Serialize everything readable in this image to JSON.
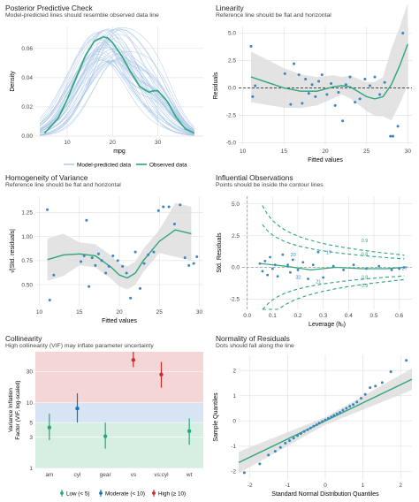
{
  "colors": {
    "green": "#2ca57a",
    "blue": "#1f6fb4",
    "red": "#c42c2c",
    "lightblue": "#a9c5e6",
    "dot": "#3b84bd",
    "grid": "#e3e3e3",
    "band": "#dcdcdc"
  },
  "chart_data": [
    {
      "type": "line",
      "title": "Posterior Predictive Check",
      "subtitle": "Model-predicted lines should resemble observed data line",
      "xlabel": "mpg",
      "ylabel": "Density",
      "xlim": [
        3,
        40
      ],
      "ylim": [
        0,
        0.075
      ],
      "xticks": [
        10,
        20,
        30
      ],
      "yticks": [
        0,
        0.02,
        0.04,
        0.06
      ],
      "ytick_labels": [
        "0.00",
        "0.02",
        "0.04",
        "0.06"
      ],
      "legend": [
        "Model-predicted data",
        "Observed data"
      ],
      "legend_position": "bottom",
      "observed": {
        "x": [
          5,
          8,
          10,
          12,
          14,
          16,
          18,
          19,
          20,
          22,
          24,
          26,
          28,
          29,
          30,
          32,
          34,
          36,
          38
        ],
        "y": [
          0.002,
          0.012,
          0.025,
          0.04,
          0.055,
          0.065,
          0.068,
          0.067,
          0.064,
          0.055,
          0.044,
          0.034,
          0.03,
          0.031,
          0.031,
          0.024,
          0.013,
          0.005,
          0.002
        ]
      }
    },
    {
      "type": "scatter",
      "title": "Linearity",
      "subtitle": "Reference line should be flat and horizontal",
      "xlabel": "Fitted values",
      "ylabel": "Residuals",
      "xlim": [
        9.5,
        30.5
      ],
      "ylim": [
        -5.2,
        5.6
      ],
      "xticks": [
        10,
        15,
        20,
        25,
        30
      ],
      "yticks": [
        -5.0,
        -2.5,
        0.0,
        2.5,
        5.0
      ],
      "ytick_labels": [
        "-5.0",
        "-2.5",
        "0.0",
        "2.5",
        "5.0"
      ],
      "points": [
        [
          11,
          3.8
        ],
        [
          11.2,
          -0.8
        ],
        [
          11.5,
          0.2
        ],
        [
          15.1,
          1.3
        ],
        [
          15.8,
          -1.5
        ],
        [
          16.2,
          2.2
        ],
        [
          16.8,
          1.2
        ],
        [
          17.2,
          -1.4
        ],
        [
          17.6,
          0.8
        ],
        [
          18,
          -0.5
        ],
        [
          18.4,
          0.3
        ],
        [
          18.8,
          -0.8
        ],
        [
          19.2,
          0.6
        ],
        [
          19.6,
          1.2
        ],
        [
          20.2,
          -0.6
        ],
        [
          20.7,
          0.4
        ],
        [
          21.2,
          -1.6
        ],
        [
          21.6,
          -0.4
        ],
        [
          22.1,
          -3.0
        ],
        [
          22.5,
          0.3
        ],
        [
          23,
          1.0
        ],
        [
          23.6,
          -1.3
        ],
        [
          24.2,
          -1.0
        ],
        [
          24.8,
          0.8
        ],
        [
          25.4,
          0.2
        ],
        [
          26,
          1.0
        ],
        [
          26.6,
          -0.6
        ],
        [
          27.2,
          0.5
        ],
        [
          27.9,
          -4.4
        ],
        [
          28.2,
          -4.4
        ],
        [
          28.8,
          -3.5
        ],
        [
          29.4,
          5.0
        ]
      ],
      "fit": {
        "x": [
          11,
          13,
          15,
          17,
          19,
          21,
          22,
          23,
          25,
          26,
          27,
          28,
          29,
          30
        ],
        "y": [
          1.0,
          0.5,
          0.0,
          -0.3,
          -0.3,
          0.1,
          0.2,
          0.1,
          -0.8,
          -1.0,
          -0.8,
          0.3,
          2.0,
          4.0
        ]
      }
    },
    {
      "type": "scatter",
      "title": "Homogeneity of Variance",
      "subtitle": "Reference line should be flat and horizontal",
      "xlabel": "Fitted values",
      "ylabel": "√|Std. residuals|",
      "xlim": [
        9.5,
        30.5
      ],
      "ylim": [
        0.28,
        1.42
      ],
      "xticks": [
        10,
        15,
        20,
        25,
        30
      ],
      "yticks": [
        0.5,
        0.75,
        1.0,
        1.25
      ],
      "ytick_labels": [
        "0.50",
        "0.75",
        "1.00",
        "1.25"
      ],
      "points": [
        [
          11,
          1.28
        ],
        [
          11.3,
          0.34
        ],
        [
          11.8,
          0.6
        ],
        [
          15.2,
          0.74
        ],
        [
          15.6,
          0.8
        ],
        [
          15.9,
          1.17
        ],
        [
          16.2,
          0.48
        ],
        [
          16.6,
          0.78
        ],
        [
          17,
          0.7
        ],
        [
          17.4,
          0.82
        ],
        [
          17.8,
          0.75
        ],
        [
          18.3,
          0.62
        ],
        [
          18.7,
          0.69
        ],
        [
          19.2,
          0.8
        ],
        [
          19.8,
          0.75
        ],
        [
          20.4,
          0.69
        ],
        [
          20.9,
          0.62
        ],
        [
          21.4,
          0.36
        ],
        [
          22,
          0.84
        ],
        [
          22.6,
          0.46
        ],
        [
          23.1,
          0.72
        ],
        [
          23.6,
          0.81
        ],
        [
          24.3,
          0.84
        ],
        [
          24.9,
          1.27
        ],
        [
          25.5,
          1.31
        ],
        [
          26.2,
          1.31
        ],
        [
          26.9,
          1.13
        ],
        [
          27.6,
          1.33
        ],
        [
          28.2,
          0.78
        ],
        [
          28.7,
          0.7
        ],
        [
          29.3,
          0.72
        ],
        [
          29.7,
          0.79
        ]
      ],
      "fit": {
        "x": [
          11,
          13,
          15,
          17,
          19,
          20,
          21,
          22,
          23,
          25,
          27,
          29
        ],
        "y": [
          0.76,
          0.81,
          0.82,
          0.8,
          0.68,
          0.6,
          0.57,
          0.62,
          0.75,
          0.95,
          1.07,
          1.03
        ]
      }
    },
    {
      "type": "scatter",
      "title": "Influential Observations",
      "subtitle": "Points should be inside the contour lines",
      "xlabel": "Leverage (hᵢᵢ)",
      "ylabel": "Std. Residuals",
      "xlim": [
        -0.02,
        0.65
      ],
      "ylim": [
        -3.3,
        5.6
      ],
      "xticks": [
        0.0,
        0.1,
        0.2,
        0.3,
        0.4,
        0.5,
        0.6
      ],
      "xtick_labels": [
        "0.0",
        "0.1",
        "0.2",
        "0.3",
        "0.4",
        "0.5",
        "0.6"
      ],
      "yticks": [
        -2.5,
        0.0,
        2.5,
        5.0
      ],
      "ytick_labels": [
        "-2.5",
        "0.0",
        "2.5",
        "5.0"
      ],
      "contour_labels": [
        "0.9",
        "0.9",
        "0.8",
        "0.8"
      ],
      "point_labels": [
        "20",
        "17",
        "32",
        "21",
        "27"
      ],
      "points": [
        [
          0.05,
          0.3
        ],
        [
          0.06,
          -0.3
        ],
        [
          0.07,
          0.5
        ],
        [
          0.08,
          -0.6
        ],
        [
          0.09,
          0.8
        ],
        [
          0.1,
          -0.1
        ],
        [
          0.11,
          0.2
        ],
        [
          0.12,
          -0.7
        ],
        [
          0.14,
          1.0
        ],
        [
          0.16,
          0.2
        ],
        [
          0.17,
          -0.4
        ],
        [
          0.18,
          0.6
        ],
        [
          0.2,
          -0.2
        ],
        [
          0.22,
          0.4
        ],
        [
          0.24,
          -0.9
        ],
        [
          0.26,
          0.2
        ],
        [
          0.28,
          1.2
        ],
        [
          0.3,
          -0.8
        ],
        [
          0.34,
          0.1
        ],
        [
          0.38,
          -0.2
        ],
        [
          0.42,
          0.2
        ],
        [
          0.47,
          -0.1
        ],
        [
          0.52,
          0.1
        ],
        [
          0.57,
          -0.2
        ],
        [
          0.6,
          -0.1
        ],
        [
          0.62,
          0.0
        ]
      ],
      "fit": {
        "x": [
          0.05,
          0.15,
          0.25,
          0.35,
          0.45,
          0.55,
          0.62
        ],
        "y": [
          0.3,
          0.1,
          -0.2,
          0.0,
          -0.1,
          -0.1,
          0.0
        ]
      }
    },
    {
      "type": "scatter",
      "title": "Collinearity",
      "subtitle": "High collinearity (VIF) may inflate parameter uncertainty",
      "xlabel": "",
      "ylabel": "Variance Inflation\nFactor (VIF, log-scaled)",
      "categories": [
        "am",
        "cyl",
        "gear",
        "vs",
        "vs:cyl",
        "wt"
      ],
      "scale": "log",
      "yticks": [
        1,
        3,
        5,
        10,
        30
      ],
      "zones": {
        "low": [
          1,
          5
        ],
        "moderate": [
          5,
          10
        ],
        "high": [
          10,
          60
        ]
      },
      "values": [
        4.2,
        8.2,
        3.1,
        45,
        27,
        3.7
      ],
      "ci": [
        [
          2.7,
          6.8
        ],
        [
          5.0,
          14.0
        ],
        [
          2.0,
          5.0
        ],
        [
          35,
          60
        ],
        [
          17,
          42
        ],
        [
          2.3,
          5.8
        ]
      ],
      "level": [
        "low",
        "moderate",
        "low",
        "high",
        "high",
        "low"
      ],
      "legend": [
        "Low (< 5)",
        "Moderate (< 10)",
        "High (≥ 10)"
      ],
      "legend_position": "bottom"
    },
    {
      "type": "scatter",
      "title": "Normality of Residuals",
      "subtitle": "Dots should fall along the line",
      "xlabel": "Standard Normal Distribution Quantiles",
      "ylabel": "Sample Quantiles",
      "xlim": [
        -2.3,
        2.3
      ],
      "ylim": [
        -2.3,
        2.6
      ],
      "xticks": [
        -2,
        -1,
        0,
        1,
        2
      ],
      "yticks": [
        -2,
        -1,
        0,
        1,
        2
      ],
      "points": [
        [
          -2.15,
          -2.05
        ],
        [
          -1.74,
          -1.7
        ],
        [
          -1.51,
          -1.35
        ],
        [
          -1.33,
          -1.2
        ],
        [
          -1.19,
          -1.05
        ],
        [
          -1.06,
          -0.88
        ],
        [
          -0.95,
          -0.78
        ],
        [
          -0.84,
          -0.68
        ],
        [
          -0.74,
          -0.58
        ],
        [
          -0.65,
          -0.5
        ],
        [
          -0.56,
          -0.42
        ],
        [
          -0.47,
          -0.35
        ],
        [
          -0.39,
          -0.28
        ],
        [
          -0.31,
          -0.21
        ],
        [
          -0.23,
          -0.15
        ],
        [
          -0.16,
          -0.08
        ],
        [
          -0.08,
          -0.02
        ],
        [
          0.0,
          0.04
        ],
        [
          0.08,
          0.1
        ],
        [
          0.16,
          0.16
        ],
        [
          0.23,
          0.22
        ],
        [
          0.31,
          0.28
        ],
        [
          0.39,
          0.34
        ],
        [
          0.47,
          0.42
        ],
        [
          0.56,
          0.5
        ],
        [
          0.65,
          0.58
        ],
        [
          0.74,
          0.65
        ],
        [
          0.84,
          0.75
        ],
        [
          0.95,
          0.9
        ],
        [
          1.06,
          1.05
        ],
        [
          1.19,
          1.32
        ],
        [
          1.33,
          1.38
        ],
        [
          1.51,
          1.52
        ],
        [
          1.74,
          1.95
        ],
        [
          2.15,
          2.4
        ]
      ],
      "fit": {
        "x": [
          -2.3,
          2.3
        ],
        "y": [
          -1.65,
          1.65
        ]
      }
    }
  ]
}
